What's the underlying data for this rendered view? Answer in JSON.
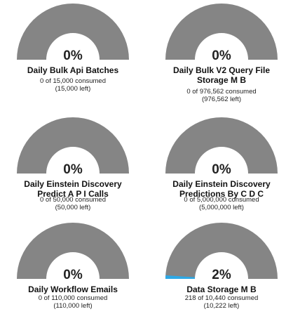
{
  "colors": {
    "track": "#858585",
    "fill": "#2ea8e5"
  },
  "gauges": [
    {
      "name": "Daily Bulk Api Batches",
      "percent_label": "0%",
      "fraction": 0,
      "consumed_text": "0 of 15,000 consumed",
      "left_text": "(15,000 left)"
    },
    {
      "name": "Daily Bulk V2 Query File Storage M B",
      "percent_label": "0%",
      "fraction": 0,
      "consumed_text": "0 of 976,562 consumed",
      "left_text": "(976,562 left)"
    },
    {
      "name": "Daily Einstein Discovery Predict A P I Calls",
      "percent_label": "0%",
      "fraction": 0,
      "consumed_text": "0 of 50,000 consumed",
      "left_text": "(50,000 left)"
    },
    {
      "name": "Daily Einstein Discovery Predictions By C D C",
      "percent_label": "0%",
      "fraction": 0,
      "consumed_text": "0 of 5,000,000 consumed",
      "left_text": "(5,000,000 left)"
    },
    {
      "name": "Daily Workflow Emails",
      "percent_label": "0%",
      "fraction": 0,
      "consumed_text": "0 of 110,000 consumed",
      "left_text": "(110,000 left)"
    },
    {
      "name": "Data Storage M B",
      "percent_label": "2%",
      "fraction": 0.02,
      "consumed_text": "218 of 10,440 consumed",
      "left_text": "(10,222 left)"
    }
  ]
}
